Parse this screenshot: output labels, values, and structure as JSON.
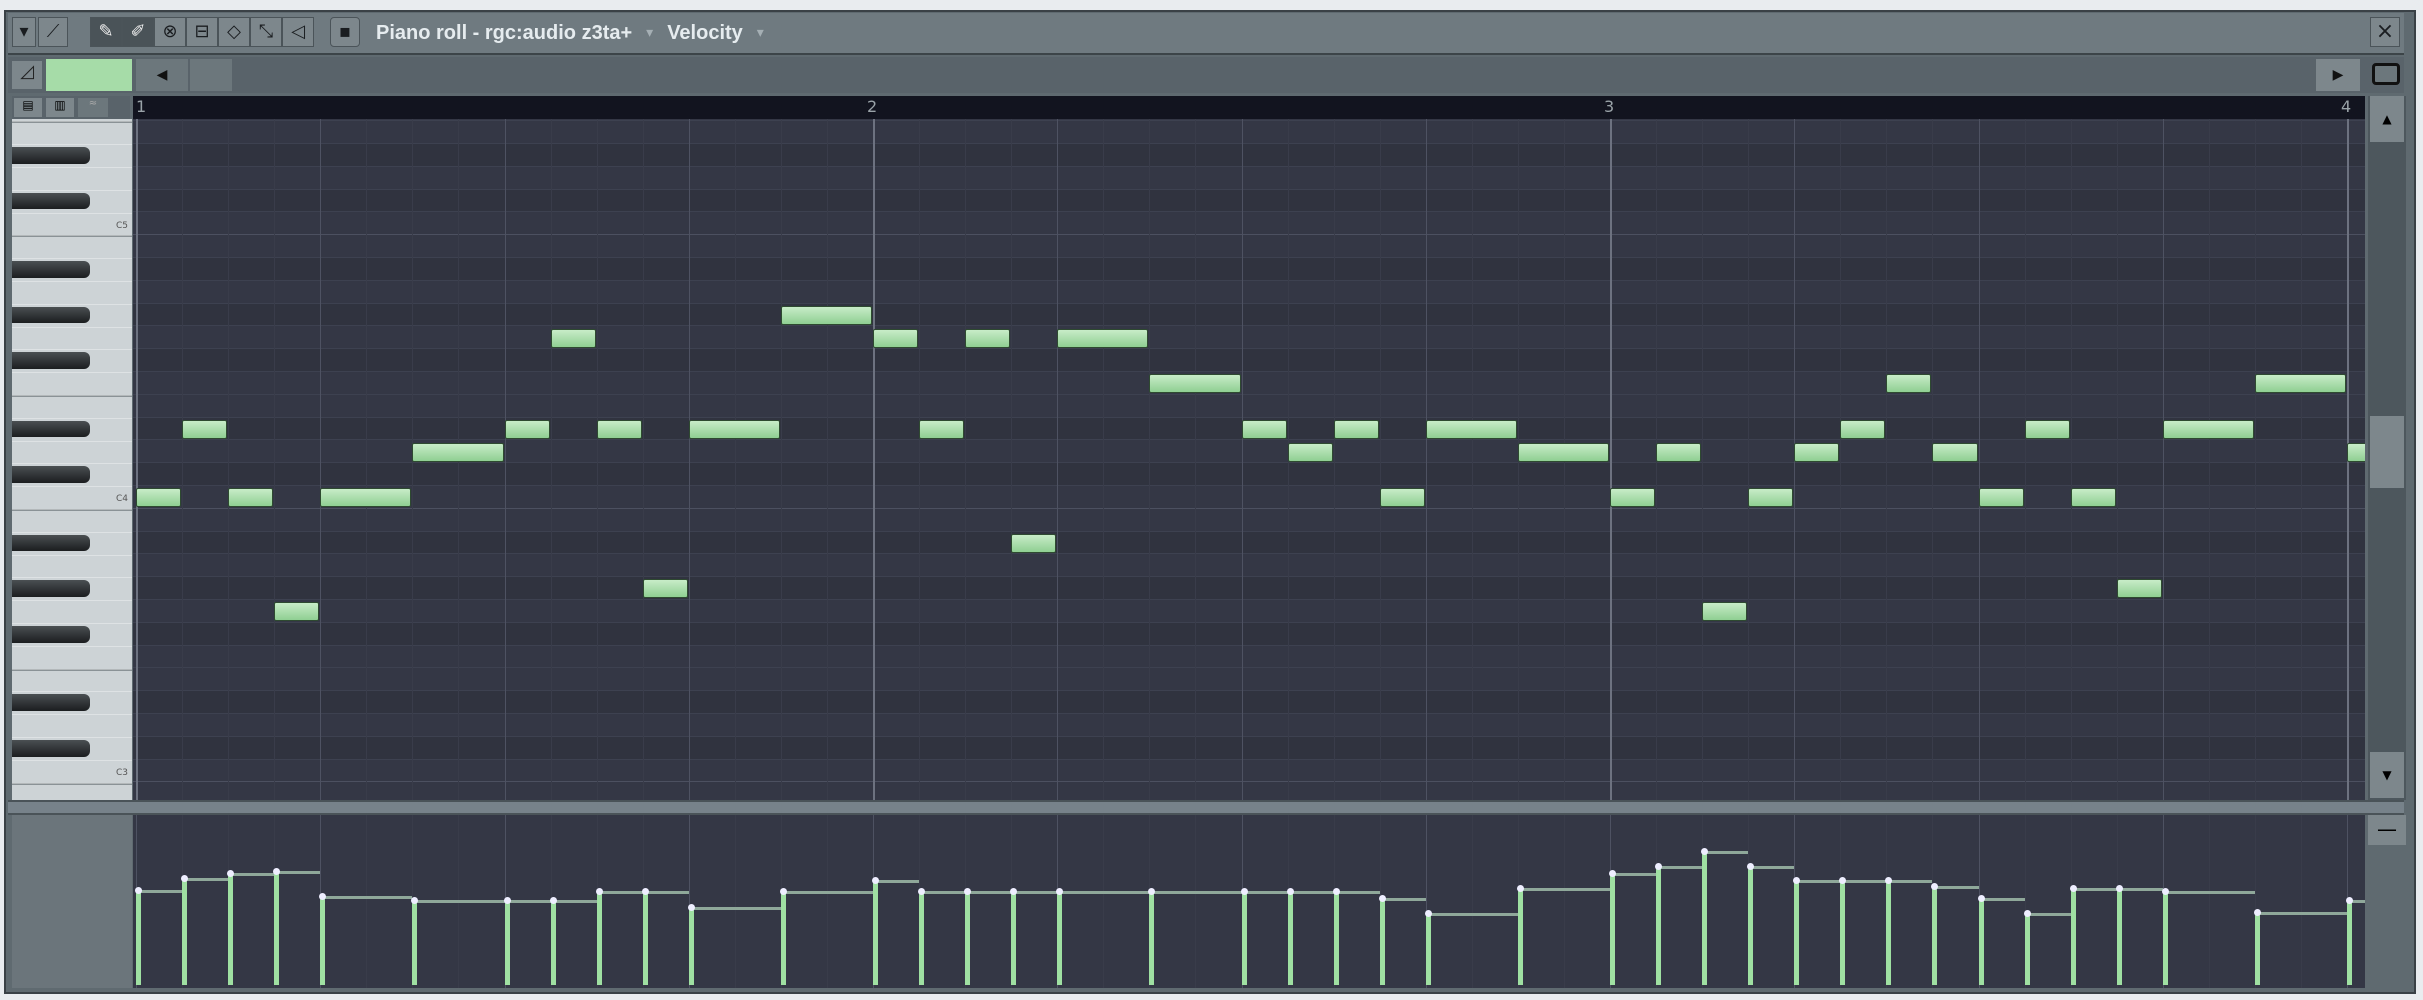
{
  "window": {
    "title": "Piano roll - rgc:audio z3ta+",
    "target_label": "Velocity",
    "toolbar_icons": [
      "menu-arrow-icon",
      "magnet-icon",
      "pencil-icon",
      "paint-icon",
      "delete-icon",
      "mute-icon",
      "select-icon",
      "zoom-icon",
      "playback-icon",
      "stamp-icon"
    ],
    "close_label": "×"
  },
  "ruler": {
    "bars": [
      "1",
      "2",
      "3",
      "4"
    ]
  },
  "piano": {
    "octave_labels": [
      {
        "name": "C5"
      },
      {
        "name": "C4"
      },
      {
        "name": "C3"
      }
    ]
  },
  "colors": {
    "note": "#a6dca8",
    "grid_bg": "#343745",
    "velocity": "#9fe0a2"
  },
  "notes": [
    {
      "pitch": "C4",
      "step": 0,
      "length": 1,
      "velocity": 57
    },
    {
      "pitch": "D#4",
      "step": 1,
      "length": 1,
      "velocity": 64
    },
    {
      "pitch": "C4",
      "step": 2,
      "length": 1,
      "velocity": 67
    },
    {
      "pitch": "G3",
      "step": 3,
      "length": 1,
      "velocity": 68
    },
    {
      "pitch": "C4",
      "step": 4,
      "length": 2,
      "velocity": 53
    },
    {
      "pitch": "D4",
      "step": 6,
      "length": 2,
      "velocity": 51
    },
    {
      "pitch": "D#4",
      "step": 8,
      "length": 1,
      "velocity": 51
    },
    {
      "pitch": "G4",
      "step": 9,
      "length": 1,
      "velocity": 51
    },
    {
      "pitch": "D#4",
      "step": 10,
      "length": 1,
      "velocity": 56
    },
    {
      "pitch": "G#3",
      "step": 11,
      "length": 1,
      "velocity": 56
    },
    {
      "pitch": "D#4",
      "step": 12,
      "length": 2,
      "velocity": 47
    },
    {
      "pitch": "G#4",
      "step": 14,
      "length": 2,
      "velocity": 56
    },
    {
      "pitch": "G4",
      "step": 16,
      "length": 1,
      "velocity": 63
    },
    {
      "pitch": "D#4",
      "step": 17,
      "length": 1,
      "velocity": 56
    },
    {
      "pitch": "G4",
      "step": 18,
      "length": 1,
      "velocity": 56
    },
    {
      "pitch": "A#3",
      "step": 19,
      "length": 1,
      "velocity": 56
    },
    {
      "pitch": "G4",
      "step": 20,
      "length": 2,
      "velocity": 56
    },
    {
      "pitch": "F4",
      "step": 22,
      "length": 2,
      "velocity": 56
    },
    {
      "pitch": "D#4",
      "step": 24,
      "length": 1,
      "velocity": 56
    },
    {
      "pitch": "D4",
      "step": 25,
      "length": 1,
      "velocity": 56
    },
    {
      "pitch": "D#4",
      "step": 26,
      "length": 1,
      "velocity": 56
    },
    {
      "pitch": "C4",
      "step": 27,
      "length": 1,
      "velocity": 52
    },
    {
      "pitch": "D#4",
      "step": 28,
      "length": 2,
      "velocity": 43
    },
    {
      "pitch": "D4",
      "step": 30,
      "length": 2,
      "velocity": 58
    },
    {
      "pitch": "C4",
      "step": 32,
      "length": 1,
      "velocity": 67
    },
    {
      "pitch": "D4",
      "step": 33,
      "length": 1,
      "velocity": 71
    },
    {
      "pitch": "G3",
      "step": 34,
      "length": 1,
      "velocity": 80
    },
    {
      "pitch": "C4",
      "step": 35,
      "length": 1,
      "velocity": 71
    },
    {
      "pitch": "D4",
      "step": 36,
      "length": 1,
      "velocity": 63
    },
    {
      "pitch": "D#4",
      "step": 37,
      "length": 1,
      "velocity": 63
    },
    {
      "pitch": "F4",
      "step": 38,
      "length": 1,
      "velocity": 63
    },
    {
      "pitch": "D4",
      "step": 39,
      "length": 1,
      "velocity": 59
    },
    {
      "pitch": "C4",
      "step": 40,
      "length": 1,
      "velocity": 52
    },
    {
      "pitch": "D#4",
      "step": 41,
      "length": 1,
      "velocity": 43
    },
    {
      "pitch": "C4",
      "step": 42,
      "length": 1,
      "velocity": 58
    },
    {
      "pitch": "G#3",
      "step": 43,
      "length": 1,
      "velocity": 58
    },
    {
      "pitch": "D#4",
      "step": 44,
      "length": 2,
      "velocity": 56
    },
    {
      "pitch": "F4",
      "step": 46,
      "length": 2,
      "velocity": 44
    },
    {
      "pitch": "D4",
      "step": 48,
      "length": 1,
      "velocity": 51
    }
  ]
}
